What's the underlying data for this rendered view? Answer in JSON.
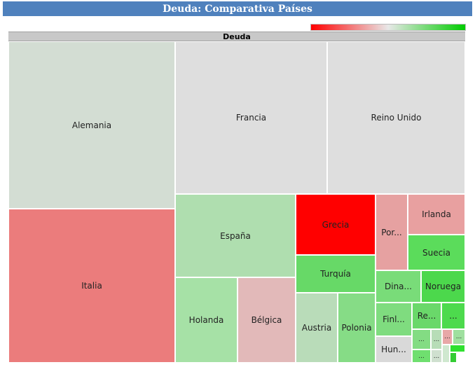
{
  "title": "Deuda: Comparativa Países",
  "chart_data": {
    "type": "treemap",
    "root_label": "Deuda",
    "color_scale": {
      "low": "#ff0000",
      "mid": "#e8e8e8",
      "high": "#00cc00"
    },
    "cells": [
      {
        "label": "Alemania",
        "color": "#d3ddd3"
      },
      {
        "label": "Francia",
        "color": "#dedede"
      },
      {
        "label": "Reino Unido",
        "color": "#dedede"
      },
      {
        "label": "Italia",
        "color": "#eb7c7c"
      },
      {
        "label": "España",
        "color": "#afdeaf"
      },
      {
        "label": "Holanda",
        "color": "#a6e1a6"
      },
      {
        "label": "Bélgica",
        "color": "#e2b9b9"
      },
      {
        "label": "Grecia",
        "color": "#ff0000"
      },
      {
        "label": "Por...",
        "color": "#e6a1a1"
      },
      {
        "label": "Irlanda",
        "color": "#e8a0a0"
      },
      {
        "label": "Suecia",
        "color": "#5bdc5b"
      },
      {
        "label": "Turquía",
        "color": "#67d967"
      },
      {
        "label": "Dina...",
        "color": "#79dc79"
      },
      {
        "label": "Noruega",
        "color": "#4cd84c"
      },
      {
        "label": "Austria",
        "color": "#b9dcb9"
      },
      {
        "label": "Polonia",
        "color": "#86dc86"
      },
      {
        "label": "Finl...",
        "color": "#7fdc7f"
      },
      {
        "label": "Re...",
        "color": "#6ad86a"
      },
      {
        "label": "...",
        "color": "#4dda4d"
      },
      {
        "label": "Hun...",
        "color": "#d9d9d9"
      },
      {
        "label": "...",
        "color": "#83dc83"
      },
      {
        "label": "...",
        "color": "#b7ddb7"
      },
      {
        "label": "...",
        "color": "#6fdf6f"
      },
      {
        "label": "...",
        "color": "#cfe0cf"
      },
      {
        "label": "...",
        "color": "#e8a7a7"
      },
      {
        "label": "...",
        "color": "#9fe09f"
      },
      {
        "label": "",
        "color": "#cfe8cf"
      },
      {
        "label": "",
        "color": "#2fe02f"
      },
      {
        "label": "",
        "color": "#33cc33"
      },
      {
        "label": "",
        "color": "#ffffff"
      }
    ]
  }
}
